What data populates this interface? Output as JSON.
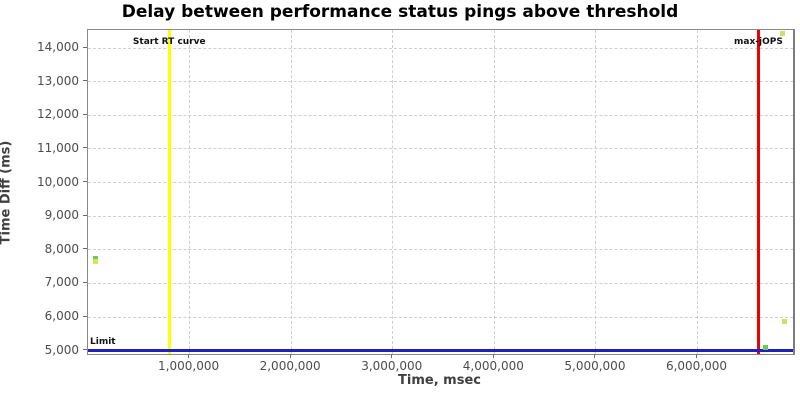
{
  "chart_data": {
    "type": "scatter",
    "title": "Delay between performance status pings above threshold",
    "xlabel": "Time, msec",
    "ylabel": "Time Diff (ms)",
    "xlim": [
      0,
      6940000
    ],
    "ylim": [
      4900,
      14540
    ],
    "grid": true,
    "x_ticks": [
      {
        "value": 1000000,
        "label": "1,000,000"
      },
      {
        "value": 2000000,
        "label": "2,000,000"
      },
      {
        "value": 3000000,
        "label": "3,000,000"
      },
      {
        "value": 4000000,
        "label": "4,000,000"
      },
      {
        "value": 5000000,
        "label": "5,000,000"
      },
      {
        "value": 6000000,
        "label": "6,000,000"
      }
    ],
    "y_ticks": [
      {
        "value": 5000,
        "label": "5,000"
      },
      {
        "value": 6000,
        "label": "6,000"
      },
      {
        "value": 7000,
        "label": "7,000"
      },
      {
        "value": 8000,
        "label": "8,000"
      },
      {
        "value": 9000,
        "label": "9,000"
      },
      {
        "value": 10000,
        "label": "10,000"
      },
      {
        "value": 11000,
        "label": "11,000"
      },
      {
        "value": 12000,
        "label": "12,000"
      },
      {
        "value": 13000,
        "label": "13,000"
      },
      {
        "value": 14000,
        "label": "14,000"
      }
    ],
    "points": [
      {
        "x": 70000,
        "y": 7750,
        "color": "#66cc66"
      },
      {
        "x": 70000,
        "y": 7650,
        "color": "#e8df4e"
      },
      {
        "x": 6840000,
        "y": 14450,
        "color": "#c9e26a"
      },
      {
        "x": 6860000,
        "y": 5870,
        "color": "#c9e26a"
      },
      {
        "x": 6670000,
        "y": 5100,
        "color": "#66cc55"
      }
    ],
    "reference_lines": [
      {
        "label": "Start RT curve",
        "orientation": "vertical",
        "value": 800000,
        "color": "#ffff00"
      },
      {
        "label": "max-jOPS",
        "orientation": "vertical",
        "value": 6600000,
        "color": "#ee0000"
      },
      {
        "label": "Limit",
        "orientation": "horizontal",
        "value": 5000,
        "color": "#2020c0"
      }
    ]
  }
}
